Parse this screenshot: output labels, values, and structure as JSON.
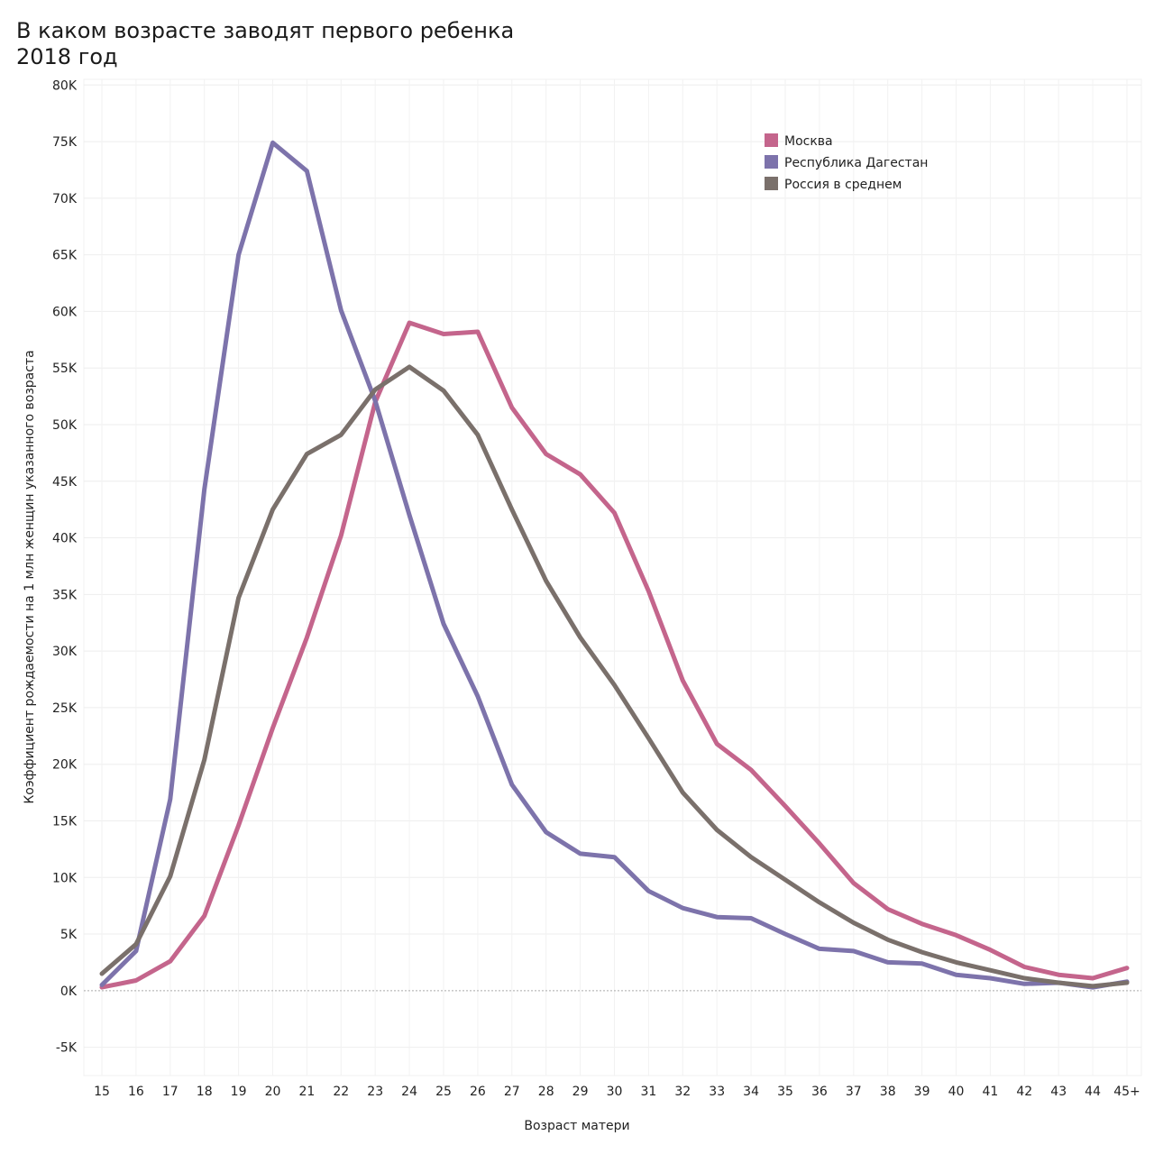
{
  "chart_data": {
    "type": "line",
    "title": "В каком возрасте заводят первого ребенка",
    "subtitle": "2018 год",
    "xlabel": "Возраст матери",
    "ylabel": "Коэффициент рождаемости на 1 млн женщин указанного возраста",
    "categories": [
      "15",
      "16",
      "17",
      "18",
      "19",
      "20",
      "21",
      "22",
      "23",
      "24",
      "25",
      "26",
      "27",
      "28",
      "29",
      "30",
      "31",
      "32",
      "33",
      "34",
      "35",
      "36",
      "37",
      "38",
      "39",
      "40",
      "41",
      "42",
      "43",
      "44",
      "45+"
    ],
    "ylim": [
      -7500,
      80500
    ],
    "yticks": [
      -5000,
      0,
      5000,
      10000,
      15000,
      20000,
      25000,
      30000,
      35000,
      40000,
      45000,
      50000,
      55000,
      60000,
      65000,
      70000,
      75000,
      80000
    ],
    "ytick_labels": [
      "-5K",
      "0K",
      "5K",
      "10K",
      "15K",
      "20K",
      "25K",
      "30K",
      "35K",
      "40K",
      "45K",
      "50K",
      "55K",
      "60K",
      "65K",
      "70K",
      "75K",
      "80K"
    ],
    "grid": true,
    "legend_position": "top-right",
    "series": [
      {
        "name": "Москва",
        "color": "#c4658c",
        "values": [
          300,
          900,
          2600,
          6600,
          14600,
          23200,
          31200,
          40200,
          52000,
          59000,
          58000,
          58200,
          51500,
          47400,
          45600,
          42200,
          35300,
          27400,
          21800,
          19500,
          16300,
          13000,
          9500,
          7200,
          5900,
          4900,
          3600,
          2100,
          1400,
          1100,
          2000
        ]
      },
      {
        "name": "Республика Дагестан",
        "color": "#7d73ab",
        "values": [
          500,
          3500,
          16900,
          44300,
          65000,
          74900,
          72400,
          60100,
          52100,
          42000,
          32400,
          26000,
          18200,
          14000,
          12100,
          11800,
          8800,
          7300,
          6500,
          6400,
          5000,
          3700,
          3500,
          2500,
          2400,
          1400,
          1100,
          600,
          700,
          300,
          800
        ]
      },
      {
        "name": "Россия в среднем",
        "color": "#7a706b",
        "values": [
          1500,
          4100,
          10100,
          20400,
          34700,
          42500,
          47400,
          49100,
          53100,
          55100,
          53000,
          49100,
          42500,
          36200,
          31200,
          27000,
          22300,
          17500,
          14200,
          11800,
          9800,
          7800,
          6000,
          4500,
          3400,
          2500,
          1800,
          1100,
          700,
          400,
          700
        ]
      }
    ]
  }
}
